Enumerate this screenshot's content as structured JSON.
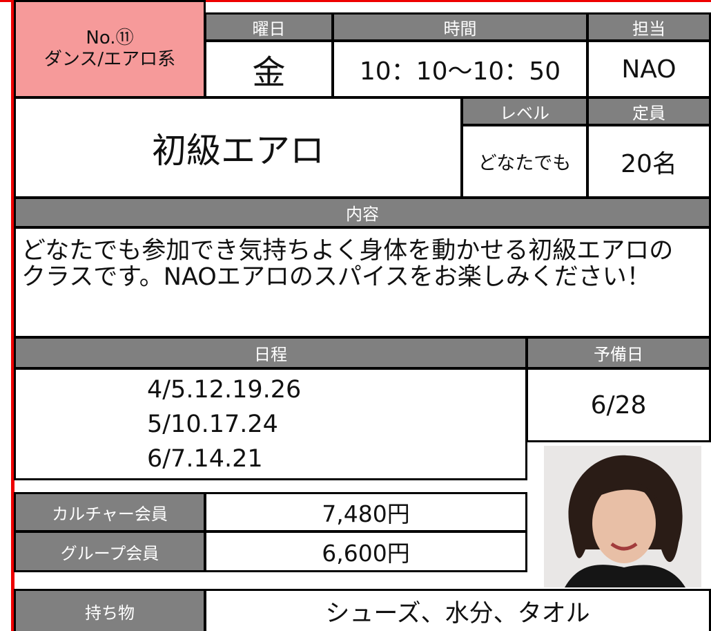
{
  "header": {
    "number": "No.⑪",
    "category": "ダンス/エアロ系",
    "day_label": "曜日",
    "day": "金",
    "time_label": "時間",
    "time": "10：10〜10：50",
    "instructor_label": "担当",
    "instructor": "NAO"
  },
  "class": {
    "name": "初級エアロ",
    "level_label": "レベル",
    "level": "どなたでも",
    "capacity_label": "定員",
    "capacity": "20名"
  },
  "content": {
    "label": "内容",
    "text": "どなたでも参加でき気持ちよく身体を動かせる初級エアロのクラスです。NAOエアロのスパイスをお楽しみください！"
  },
  "schedule": {
    "label": "日程",
    "dates": [
      "4/5.12.19.26",
      "5/10.17.24",
      "6/7.14.21"
    ],
    "reserve_label": "予備日",
    "reserve": "6/28"
  },
  "fees": [
    {
      "label": "カルチャー会員",
      "price": "7,480円"
    },
    {
      "label": "グループ会員",
      "price": "6,600円"
    }
  ],
  "belongings": {
    "label": "持ち物",
    "items": "シューズ、水分、タオル"
  }
}
